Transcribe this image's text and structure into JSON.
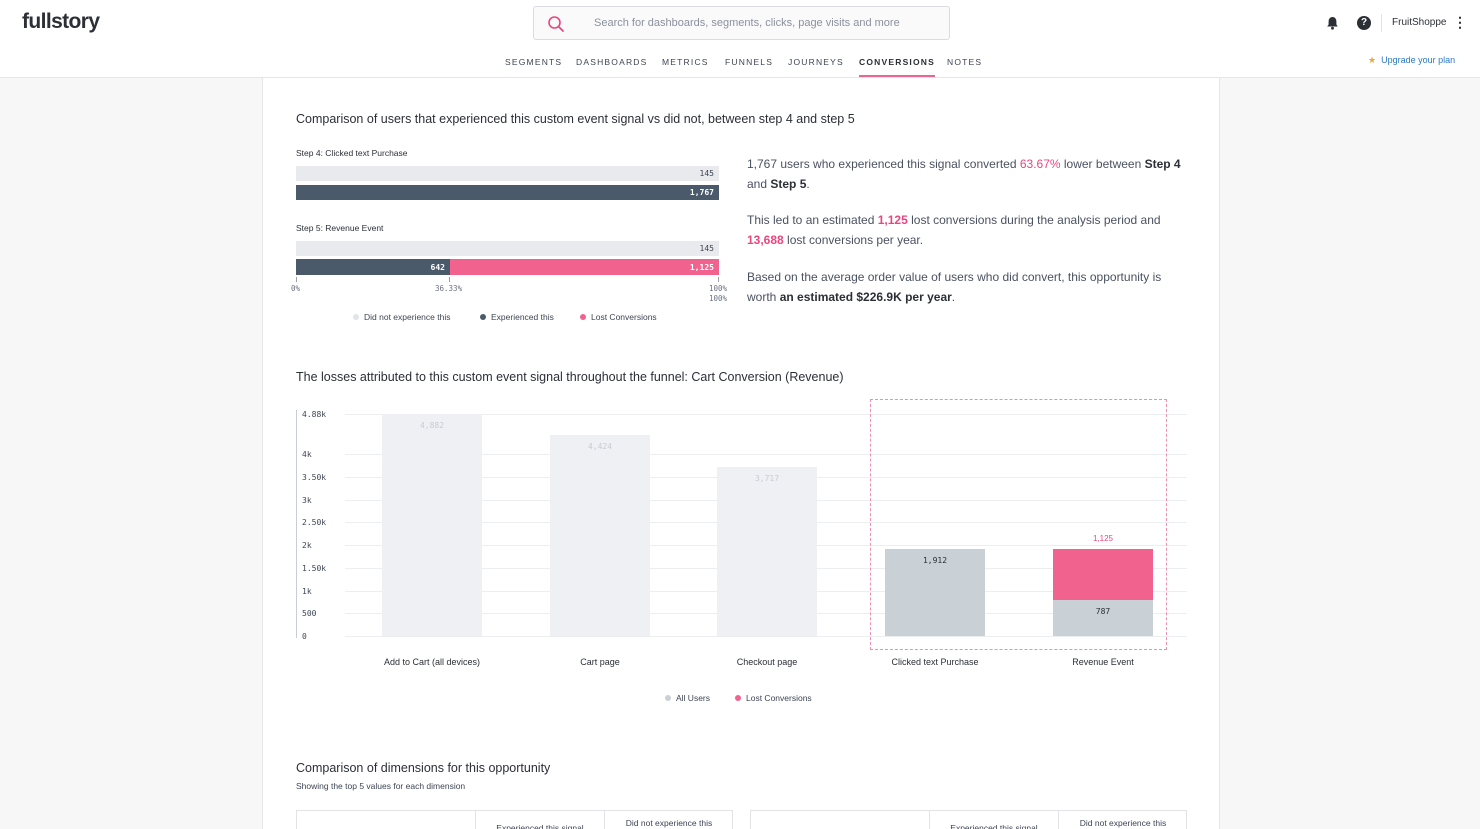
{
  "header": {
    "logo": "fullstory",
    "search_placeholder": "Search for dashboards, segments, clicks, page visits and more",
    "org_name": "FruitShoppe",
    "help_label": "?",
    "nav": [
      "SEGMENTS",
      "DASHBOARDS",
      "METRICS",
      "FUNNELS",
      "JOURNEYS",
      "CONVERSIONS",
      "NOTES"
    ],
    "active_nav": "CONVERSIONS",
    "upgrade_label": "Upgrade your plan"
  },
  "comparison": {
    "title": "Comparison of users that experienced this custom event signal vs did not, between step 4 and step 5",
    "step4": {
      "label": "Step 4: Clicked text Purchase",
      "did_not": "145",
      "experienced": "1,767"
    },
    "step5": {
      "label": "Step 5: Revenue Event",
      "did_not": "145",
      "experienced": "642",
      "lost": "1,125",
      "experienced_fraction": 0.3633
    },
    "axis": {
      "start": "0%",
      "mid": "36.33%",
      "end_top": "100%",
      "end_bottom": "100%"
    },
    "legend": [
      "Did not experience this",
      "Experienced this",
      "Lost Conversions"
    ]
  },
  "summary": {
    "p1_a": "1,767 users who experienced this signal converted ",
    "p1_pct": "63.67%",
    "p1_b": " lower between ",
    "p1_step4": "Step 4",
    "p1_c": "and ",
    "p1_step5": "Step 5",
    "p1_d": ".",
    "p2_a": "This led to an estimated ",
    "p2_lost": "1,125",
    "p2_b": " lost conversions during the analysis period and",
    "p2_year": "13,688",
    "p2_c": " lost conversions per year.",
    "p3_a": "Based on the average order value of users who did convert, this opportunity is",
    "p3_b": "worth ",
    "p3_value": "an estimated $226.9K per year",
    "p3_c": "."
  },
  "funnel": {
    "title": "The losses attributed to this custom event signal throughout the funnel: Cart Conversion (Revenue)",
    "legend": [
      "All Users",
      "Lost Conversions"
    ],
    "y_ticks": [
      "4.88k",
      "4k",
      "3.50k",
      "3k",
      "2.50k",
      "2k",
      "1.50k",
      "1k",
      "500",
      "0"
    ],
    "value_labels": [
      "4,882",
      "4,424",
      "3,717",
      "1,912",
      "787",
      "1,125"
    ]
  },
  "chart_data": {
    "type": "bar",
    "title": "The losses attributed to this custom event signal throughout the funnel: Cart Conversion (Revenue)",
    "categories": [
      "Add to Cart (all devices)",
      "Cart page",
      "Checkout page",
      "Clicked text Purchase",
      "Revenue Event"
    ],
    "series": [
      {
        "name": "All Users",
        "values": [
          4882,
          4424,
          3717,
          1912,
          787
        ]
      },
      {
        "name": "Lost Conversions",
        "values": [
          0,
          0,
          0,
          0,
          1125
        ]
      }
    ],
    "stacked": true,
    "ylim": [
      0,
      4882
    ],
    "y_ticks": [
      0,
      500,
      1000,
      1500,
      2000,
      2500,
      3000,
      3500,
      4000,
      4882
    ],
    "highlighted_categories": [
      "Clicked text Purchase",
      "Revenue Event"
    ],
    "grid": true,
    "legend_position": "bottom",
    "colors": {
      "all_users": "#c9d0d6",
      "all_users_faded": "#eef0f3",
      "lost": "#f2628e",
      "experienced": "#4a5a6b"
    }
  },
  "dimensions": {
    "title": "Comparison of dimensions for this opportunity",
    "subtitle": "Showing the top 5 values for each dimension",
    "col_experienced": "Experienced this signal",
    "col_did_not": "Did not experience this"
  }
}
